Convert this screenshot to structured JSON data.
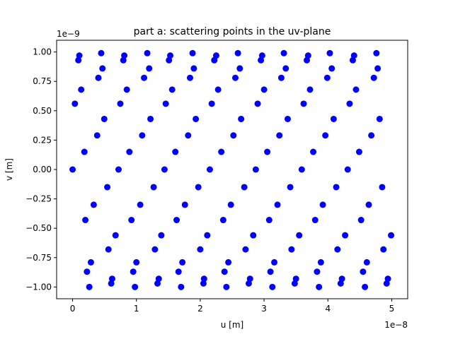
{
  "chart_data": {
    "type": "scatter",
    "title": "part a: scattering points in the uv-plane",
    "xlabel": "u [m]",
    "ylabel": "v [m]",
    "x_offset_label": "1e−8",
    "y_offset_label": "1e−9",
    "xlim": [
      -2.5e-09,
      5.25e-08
    ],
    "ylim": [
      -1.1e-09,
      1.1e-09
    ],
    "x_ticks": [
      0,
      1e-08,
      2e-08,
      3e-08,
      4e-08,
      5e-08
    ],
    "x_tick_labels": [
      "0",
      "1",
      "2",
      "3",
      "4",
      "5"
    ],
    "y_ticks": [
      -1e-09,
      -7.5e-10,
      -5e-10,
      -2.5e-10,
      0,
      2.5e-10,
      5e-10,
      7.5e-10,
      1e-09
    ],
    "y_tick_labels": [
      "−1.00",
      "−0.75",
      "−0.50",
      "−0.25",
      "0.00",
      "0.25",
      "0.50",
      "0.75",
      "1.00"
    ],
    "grid": false,
    "marker_color": "#0000ff",
    "points": [
      [
        0.0,
        0.0
      ],
      [
        3.6e-10,
        5.6e-10
      ],
      [
        9e-10,
        9.3e-10
      ],
      [
        1.06e-09,
        9.7e-10
      ],
      [
        1.35e-09,
        6.8e-10
      ],
      [
        1.85e-09,
        1.5e-10
      ],
      [
        2e-09,
        -4.3e-10
      ],
      [
        2.25e-09,
        -8.7e-10
      ],
      [
        2.62e-09,
        -1e-09
      ],
      [
        2.87e-09,
        -7.9e-10
      ],
      [
        3.31e-09,
        -3e-10
      ],
      [
        3.85e-09,
        2.9e-10
      ],
      [
        4.04e-09,
        7.8e-10
      ],
      [
        4.48e-09,
        9.9e-10
      ],
      [
        4.68e-09,
        8.6e-10
      ],
      [
        4.96e-09,
        4.3e-10
      ],
      [
        5.44e-09,
        -1.5e-10
      ],
      [
        5.62e-09,
        -6.8e-10
      ],
      [
        6.05e-09,
        -9.7e-10
      ],
      [
        6.2e-09,
        -9.3e-10
      ],
      [
        6.73e-09,
        -5.6e-10
      ],
      [
        7.2e-09,
        0.0
      ],
      [
        7.48e-09,
        5.6e-10
      ],
      [
        7.95e-09,
        9.3e-10
      ],
      [
        8.1e-09,
        9.7e-10
      ],
      [
        8.5e-09,
        6.8e-10
      ],
      [
        8.9e-09,
        1.5e-10
      ],
      [
        9.22e-09,
        -4.3e-10
      ],
      [
        9.5e-09,
        -8.7e-10
      ],
      [
        9.77e-09,
        -1e-09
      ],
      [
        1e-08,
        -7.9e-10
      ],
      [
        1.06e-08,
        -3e-10
      ],
      [
        1.09e-08,
        2.9e-10
      ],
      [
        1.12e-08,
        7.8e-10
      ],
      [
        1.17e-08,
        9.9e-10
      ],
      [
        1.2e-08,
        8.6e-10
      ],
      [
        1.22e-08,
        4.3e-10
      ],
      [
        1.27e-08,
        -1.5e-10
      ],
      [
        1.29e-08,
        -6.8e-10
      ],
      [
        1.33e-08,
        -9.7e-10
      ],
      [
        1.35e-08,
        -9.3e-10
      ],
      [
        1.39e-08,
        -5.6e-10
      ],
      [
        1.44e-08,
        0.0
      ],
      [
        1.46e-08,
        5.6e-10
      ],
      [
        1.51e-08,
        9.3e-10
      ],
      [
        1.53e-08,
        9.7e-10
      ],
      [
        1.56e-08,
        6.8e-10
      ],
      [
        1.61e-08,
        1.5e-10
      ],
      [
        1.63e-08,
        -4.3e-10
      ],
      [
        1.66e-08,
        -8.7e-10
      ],
      [
        1.7e-08,
        -1e-09
      ],
      [
        1.72e-08,
        -7.9e-10
      ],
      [
        1.76e-08,
        -3e-10
      ],
      [
        1.81e-08,
        2.9e-10
      ],
      [
        1.84e-08,
        7.8e-10
      ],
      [
        1.88e-08,
        9.9e-10
      ],
      [
        1.9e-08,
        8.6e-10
      ],
      [
        1.93e-08,
        4.3e-10
      ],
      [
        1.97e-08,
        -1.5e-10
      ],
      [
        2e-08,
        -6.8e-10
      ],
      [
        2.05e-08,
        -9.7e-10
      ],
      [
        2.06e-08,
        -9.3e-10
      ],
      [
        2.11e-08,
        -5.6e-10
      ],
      [
        2.15e-08,
        0.0
      ],
      [
        2.18e-08,
        5.6e-10
      ],
      [
        2.22e-08,
        9.3e-10
      ],
      [
        2.25e-08,
        9.7e-10
      ],
      [
        2.28e-08,
        6.8e-10
      ],
      [
        2.33e-08,
        1.5e-10
      ],
      [
        2.36e-08,
        -4.3e-10
      ],
      [
        2.38e-08,
        -8.7e-10
      ],
      [
        2.41e-08,
        -1e-09
      ],
      [
        2.44e-08,
        -7.9e-10
      ],
      [
        2.48e-08,
        -3e-10
      ],
      [
        2.52e-08,
        2.9e-10
      ],
      [
        2.55e-08,
        7.8e-10
      ],
      [
        2.59e-08,
        9.9e-10
      ],
      [
        2.62e-08,
        8.6e-10
      ],
      [
        2.64e-08,
        4.3e-10
      ],
      [
        2.69e-08,
        -1.5e-10
      ],
      [
        2.71e-08,
        -6.8e-10
      ],
      [
        2.76e-08,
        -9.7e-10
      ],
      [
        2.78e-08,
        -9.3e-10
      ],
      [
        2.83e-08,
        -5.6e-10
      ],
      [
        2.87e-08,
        0.0
      ],
      [
        2.9e-08,
        5.6e-10
      ],
      [
        2.95e-08,
        9.3e-10
      ],
      [
        2.97e-08,
        9.7e-10
      ],
      [
        3e-08,
        6.8e-10
      ],
      [
        3.05e-08,
        1.5e-10
      ],
      [
        3.08e-08,
        -4.3e-10
      ],
      [
        3.1e-08,
        -8.7e-10
      ],
      [
        3.13e-08,
        -1e-09
      ],
      [
        3.16e-08,
        -7.9e-10
      ],
      [
        3.21e-08,
        -3e-10
      ],
      [
        3.24e-08,
        2.9e-10
      ],
      [
        3.27e-08,
        7.8e-10
      ],
      [
        3.31e-08,
        9.9e-10
      ],
      [
        3.34e-08,
        8.6e-10
      ],
      [
        3.37e-08,
        4.3e-10
      ],
      [
        3.41e-08,
        -1.5e-10
      ],
      [
        3.43e-08,
        -6.8e-10
      ],
      [
        3.48e-08,
        -9.7e-10
      ],
      [
        3.5e-08,
        -9.3e-10
      ],
      [
        3.55e-08,
        -5.6e-10
      ],
      [
        3.59e-08,
        0.0
      ],
      [
        3.62e-08,
        5.6e-10
      ],
      [
        3.67e-08,
        9.3e-10
      ],
      [
        3.69e-08,
        9.7e-10
      ],
      [
        3.72e-08,
        6.8e-10
      ],
      [
        3.77e-08,
        1.5e-10
      ],
      [
        3.8e-08,
        -4.3e-10
      ],
      [
        3.83e-08,
        -8.7e-10
      ],
      [
        3.86e-08,
        -1e-09
      ],
      [
        3.89e-08,
        -7.9e-10
      ],
      [
        3.92e-08,
        -3e-10
      ],
      [
        3.96e-08,
        2.9e-10
      ],
      [
        3.99e-08,
        7.8e-10
      ],
      [
        4.03e-08,
        9.9e-10
      ],
      [
        4.06e-08,
        8.6e-10
      ],
      [
        4.09e-08,
        4.3e-10
      ],
      [
        4.13e-08,
        -1.5e-10
      ],
      [
        4.15e-08,
        -6.8e-10
      ],
      [
        4.2e-08,
        -9.7e-10
      ],
      [
        4.22e-08,
        -9.3e-10
      ],
      [
        4.27e-08,
        -5.6e-10
      ],
      [
        4.31e-08,
        0.0
      ],
      [
        4.34e-08,
        5.6e-10
      ],
      [
        4.39e-08,
        9.3e-10
      ],
      [
        4.41e-08,
        9.7e-10
      ],
      [
        4.44e-08,
        6.8e-10
      ],
      [
        4.49e-08,
        1.5e-10
      ],
      [
        4.52e-08,
        -4.3e-10
      ],
      [
        4.55e-08,
        -8.7e-10
      ],
      [
        4.58e-08,
        -1e-09
      ],
      [
        4.61e-08,
        -7.9e-10
      ],
      [
        4.64e-08,
        -3e-10
      ],
      [
        4.68e-08,
        2.9e-10
      ],
      [
        4.72e-08,
        7.8e-10
      ],
      [
        4.76e-08,
        9.9e-10
      ],
      [
        4.78e-08,
        8.6e-10
      ],
      [
        4.81e-08,
        4.3e-10
      ],
      [
        4.85e-08,
        -1.5e-10
      ],
      [
        4.87e-08,
        -6.8e-10
      ],
      [
        4.92e-08,
        -9.7e-10
      ],
      [
        4.94e-08,
        -9.3e-10
      ],
      [
        4.99e-08,
        -5.6e-10
      ]
    ]
  }
}
